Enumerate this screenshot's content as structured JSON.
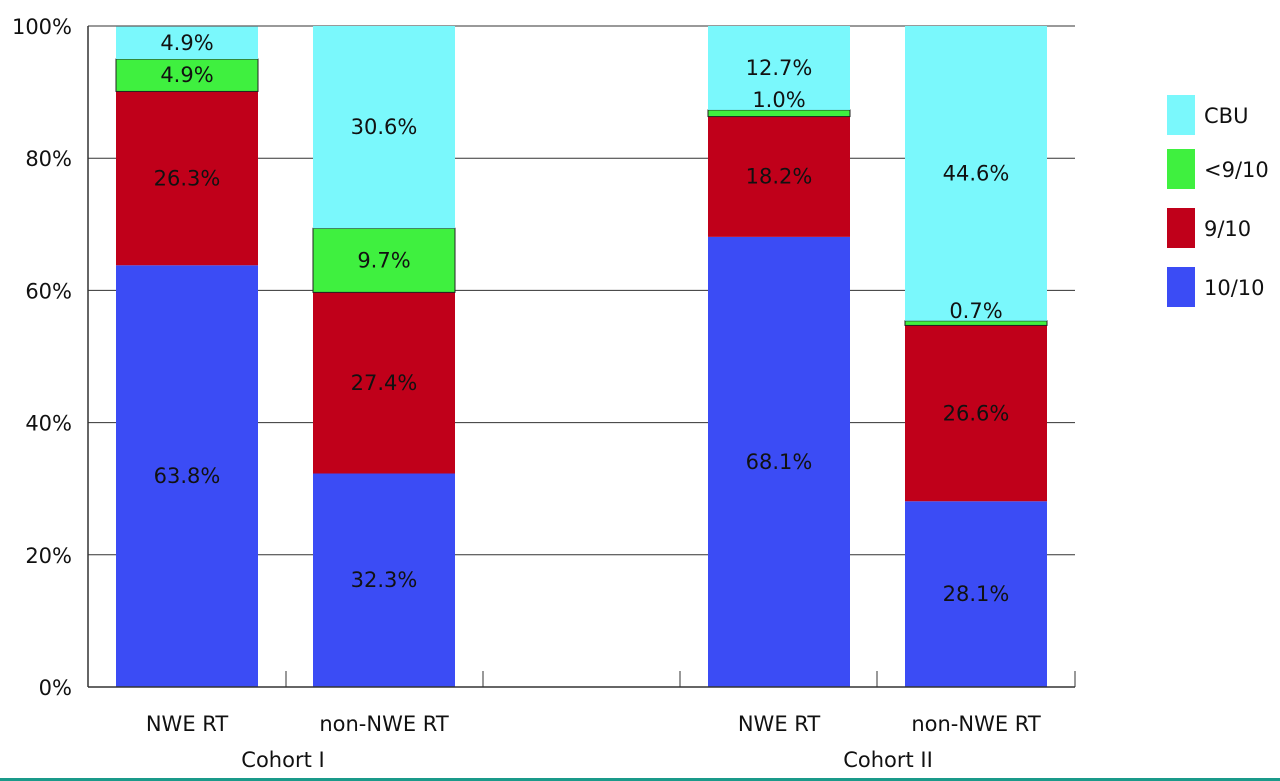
{
  "chart_data": {
    "type": "bar",
    "stacked": true,
    "title": "",
    "xlabel": "",
    "ylabel": "",
    "ylim": [
      0,
      100
    ],
    "yticks": [
      0,
      20,
      40,
      60,
      80,
      100
    ],
    "ytick_labels": [
      "0%",
      "20%",
      "40%",
      "60%",
      "80%",
      "100%"
    ],
    "grid": true,
    "legend_position": "right",
    "categories": [
      "NWE RT",
      "non-NWE RT",
      "NWE RT",
      "non-NWE RT"
    ],
    "groups": [
      {
        "label": "Cohort I",
        "categories": [
          0,
          1
        ]
      },
      {
        "label": "Cohort II",
        "categories": [
          2,
          3
        ]
      }
    ],
    "series": [
      {
        "name": "10/10",
        "color": "#3b4cf5",
        "values": [
          63.8,
          32.3,
          68.1,
          28.1
        ],
        "labels": [
          "63.8%",
          "32.3%",
          "68.1%",
          "28.1%"
        ]
      },
      {
        "name": "9/10",
        "color": "#c0001a",
        "values": [
          26.3,
          27.4,
          18.2,
          26.6
        ],
        "labels": [
          "26.3%",
          "27.4%",
          "18.2%",
          "26.6%"
        ]
      },
      {
        "name": "<9/10",
        "color": "#3ff03f",
        "values": [
          4.9,
          9.7,
          1.0,
          0.7
        ],
        "labels": [
          "4.9%",
          "9.7%",
          "1.0%",
          "0.7%"
        ]
      },
      {
        "name": "CBU",
        "color": "#7af8fc",
        "values": [
          4.9,
          30.6,
          12.7,
          44.6
        ],
        "labels": [
          "4.9%",
          "30.6%",
          "12.7%",
          "44.6%"
        ]
      }
    ],
    "legend_order": [
      "CBU",
      "<9/10",
      "9/10",
      "10/10"
    ]
  },
  "footer_color": "#1a9a8a"
}
